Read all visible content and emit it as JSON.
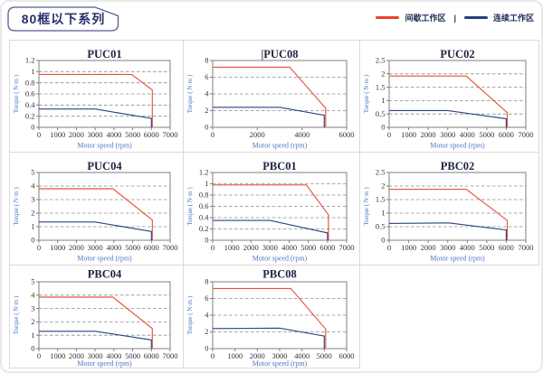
{
  "header": {
    "series_badge": "80框以下系列",
    "legend": {
      "items": [
        {
          "name": "intermittent",
          "label": "间歇工作区",
          "color": "#e8432a"
        },
        {
          "name": "continuous",
          "label": "连续工作区",
          "color": "#24407e"
        }
      ],
      "separator": "|"
    }
  },
  "axis_labels": {
    "x": "Motor speed (rpm)",
    "y": "Torque ( N·m )"
  },
  "palette": {
    "grid": "#8c8c8c",
    "frame": "#7f7f7f",
    "tick_text": "#333333",
    "chart_title": "#1c2440",
    "axis_label": "#4a79c4",
    "cell_border": "#d9d9d9",
    "line_red": "#e5523c",
    "line_blue": "#2a4585"
  },
  "chart_data": [
    {
      "name": "PUC01",
      "type": "line",
      "xlim": [
        0,
        7000
      ],
      "xticks": [
        0,
        1000,
        2000,
        3000,
        4000,
        5000,
        6000,
        7000
      ],
      "ylim": [
        0,
        1.2
      ],
      "yticks": [
        0,
        0.2,
        0.4,
        0.6,
        0.8,
        1,
        1.2
      ],
      "series": [
        {
          "name": "间歇工作区",
          "color": "#e5523c",
          "points": [
            [
              0,
              0.95
            ],
            [
              4950,
              0.95
            ],
            [
              6050,
              0.67
            ],
            [
              6050,
              0
            ]
          ]
        },
        {
          "name": "连续工作区",
          "color": "#2a4585",
          "points": [
            [
              0,
              0.33
            ],
            [
              3000,
              0.33
            ],
            [
              6000,
              0.16
            ],
            [
              6000,
              0
            ]
          ]
        }
      ]
    },
    {
      "name": "PUC08",
      "caret": true,
      "type": "line",
      "xlim": [
        0,
        6000
      ],
      "xticks": [
        0,
        2000,
        4000,
        6000
      ],
      "ylim": [
        0,
        8
      ],
      "yticks": [
        0,
        2,
        4,
        6,
        8
      ],
      "series": [
        {
          "name": "间歇工作区",
          "color": "#e5523c",
          "points": [
            [
              0,
              7.2
            ],
            [
              3450,
              7.2
            ],
            [
              5060,
              2.3
            ],
            [
              5060,
              0
            ]
          ]
        },
        {
          "name": "连续工作区",
          "color": "#2a4585",
          "points": [
            [
              0,
              2.4
            ],
            [
              3000,
              2.4
            ],
            [
              5000,
              1.45
            ],
            [
              5000,
              0
            ]
          ]
        }
      ]
    },
    {
      "name": "PUC02",
      "type": "line",
      "xlim": [
        0,
        7000
      ],
      "xticks": [
        0,
        1000,
        2000,
        3000,
        4000,
        5000,
        6000,
        7000
      ],
      "ylim": [
        0,
        2.5
      ],
      "yticks": [
        0,
        0.5,
        1,
        1.5,
        2,
        2.5
      ],
      "series": [
        {
          "name": "间歇工作区",
          "color": "#e5523c",
          "points": [
            [
              0,
              1.92
            ],
            [
              3950,
              1.92
            ],
            [
              6050,
              0.55
            ],
            [
              6050,
              0
            ]
          ]
        },
        {
          "name": "连续工作区",
          "color": "#2a4585",
          "points": [
            [
              0,
              0.63
            ],
            [
              3000,
              0.63
            ],
            [
              6000,
              0.32
            ],
            [
              6000,
              0
            ]
          ]
        }
      ]
    },
    {
      "name": "PUC04",
      "type": "line",
      "xlim": [
        0,
        7000
      ],
      "xticks": [
        0,
        1000,
        2000,
        3000,
        4000,
        5000,
        6000,
        7000
      ],
      "ylim": [
        0,
        5
      ],
      "yticks": [
        0,
        1,
        2,
        3,
        4,
        5
      ],
      "series": [
        {
          "name": "间歇工作区",
          "color": "#e5523c",
          "points": [
            [
              0,
              3.8
            ],
            [
              3950,
              3.8
            ],
            [
              6050,
              1.5
            ],
            [
              6050,
              0
            ]
          ]
        },
        {
          "name": "连续工作区",
          "color": "#2a4585",
          "points": [
            [
              0,
              1.35
            ],
            [
              3000,
              1.35
            ],
            [
              6000,
              0.65
            ],
            [
              6000,
              0
            ]
          ]
        }
      ]
    },
    {
      "name": "PBC01",
      "type": "line",
      "xlim": [
        0,
        7000
      ],
      "xticks": [
        0,
        1000,
        2000,
        3000,
        4000,
        5000,
        6000,
        7000
      ],
      "ylim": [
        0,
        1.2
      ],
      "yticks": [
        0,
        0.2,
        0.4,
        0.6,
        0.8,
        1,
        1.2
      ],
      "series": [
        {
          "name": "间歇工作区",
          "color": "#e5523c",
          "points": [
            [
              0,
              0.98
            ],
            [
              4900,
              0.98
            ],
            [
              6050,
              0.45
            ],
            [
              6050,
              0
            ]
          ]
        },
        {
          "name": "连续工作区",
          "color": "#2a4585",
          "points": [
            [
              0,
              0.35
            ],
            [
              3000,
              0.35
            ],
            [
              6000,
              0.13
            ],
            [
              6000,
              0
            ]
          ]
        }
      ]
    },
    {
      "name": "PBC02",
      "type": "line",
      "xlim": [
        0,
        7000
      ],
      "xticks": [
        0,
        1000,
        2000,
        3000,
        4000,
        5000,
        6000,
        7000
      ],
      "ylim": [
        0,
        2.5
      ],
      "yticks": [
        0,
        0.5,
        1,
        1.5,
        2,
        2.5
      ],
      "series": [
        {
          "name": "间歇工作区",
          "color": "#e5523c",
          "points": [
            [
              0,
              1.88
            ],
            [
              3950,
              1.88
            ],
            [
              6050,
              0.73
            ],
            [
              6050,
              0
            ]
          ]
        },
        {
          "name": "连续工作区",
          "color": "#2a4585",
          "points": [
            [
              0,
              0.62
            ],
            [
              3050,
              0.64
            ],
            [
              6000,
              0.38
            ],
            [
              6000,
              0
            ]
          ]
        }
      ]
    },
    {
      "name": "PBC04",
      "type": "line",
      "xlim": [
        0,
        7000
      ],
      "xticks": [
        0,
        1000,
        2000,
        3000,
        4000,
        5000,
        6000,
        7000
      ],
      "ylim": [
        0,
        5
      ],
      "yticks": [
        0,
        1,
        2,
        3,
        4,
        5
      ],
      "series": [
        {
          "name": "间歇工作区",
          "color": "#e5523c",
          "points": [
            [
              0,
              3.85
            ],
            [
              3950,
              3.85
            ],
            [
              6050,
              1.5
            ],
            [
              6050,
              0
            ]
          ]
        },
        {
          "name": "连续工作区",
          "color": "#2a4585",
          "points": [
            [
              0,
              1.3
            ],
            [
              3000,
              1.3
            ],
            [
              6000,
              0.65
            ],
            [
              6000,
              0
            ]
          ]
        }
      ]
    },
    {
      "name": "PBC08",
      "type": "line",
      "xlim": [
        0,
        6000
      ],
      "xticks": [
        0,
        1000,
        2000,
        3000,
        4000,
        5000,
        6000
      ],
      "ylim": [
        0,
        8
      ],
      "yticks": [
        0,
        2,
        4,
        6,
        8
      ],
      "series": [
        {
          "name": "间歇工作区",
          "color": "#e5523c",
          "points": [
            [
              0,
              7.2
            ],
            [
              3500,
              7.2
            ],
            [
              5060,
              2.35
            ],
            [
              5060,
              0
            ]
          ]
        },
        {
          "name": "连续工作区",
          "color": "#2a4585",
          "points": [
            [
              0,
              2.4
            ],
            [
              3000,
              2.45
            ],
            [
              5000,
              1.5
            ],
            [
              5000,
              0
            ]
          ]
        }
      ]
    }
  ]
}
